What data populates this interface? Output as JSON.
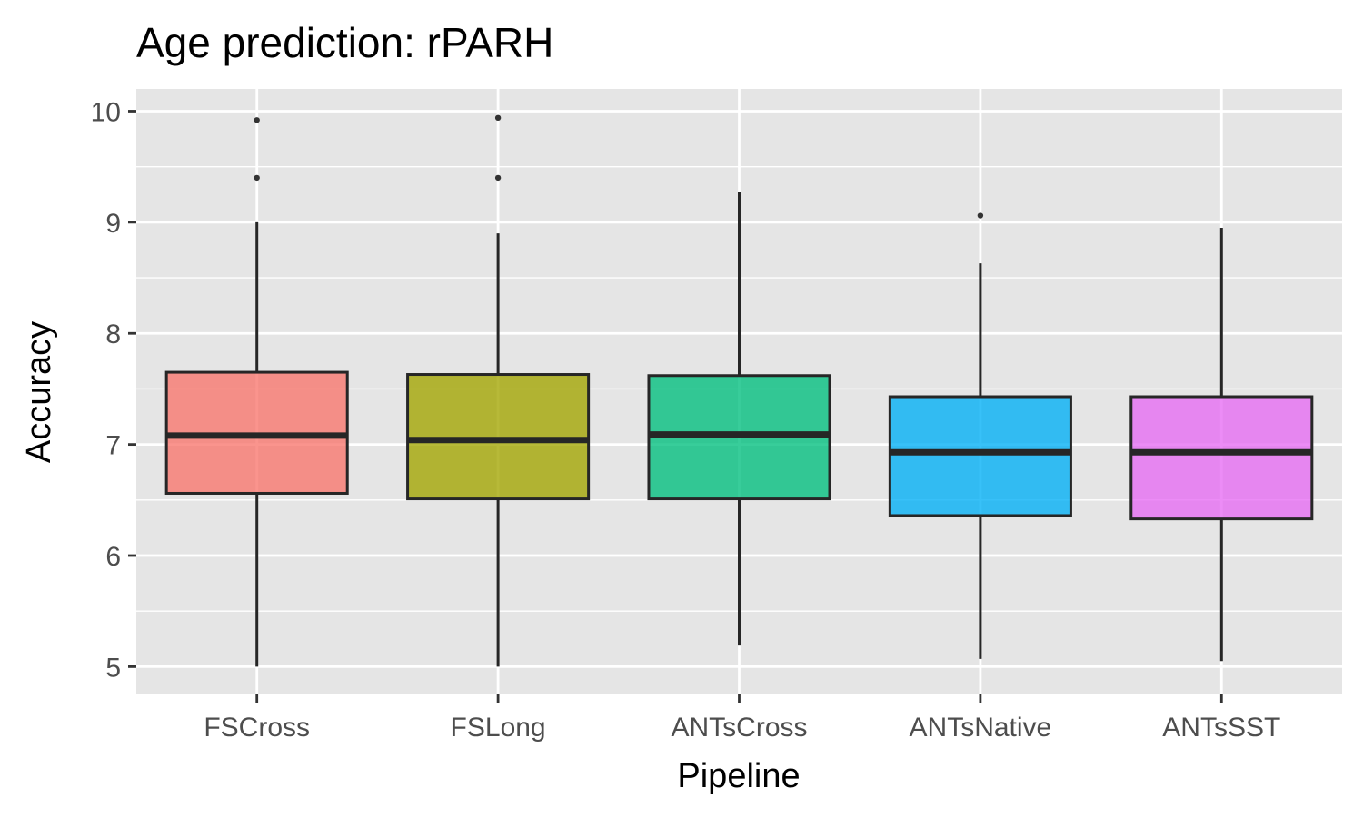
{
  "chart_data": {
    "type": "box",
    "title": "Age prediction: rPARH",
    "xlabel": "Pipeline",
    "ylabel": "Accuracy",
    "ylim": [
      4.75,
      10.2
    ],
    "yticks": [
      5,
      6,
      7,
      8,
      9,
      10
    ],
    "ytick_labels": [
      "5",
      "6",
      "7",
      "8",
      "9",
      "10"
    ],
    "grid": true,
    "legend": "none",
    "categories": [
      "FSCross",
      "FSLong",
      "ANTsCross",
      "ANTsNative",
      "ANTsSST"
    ],
    "series": [
      {
        "category": "FSCross",
        "whisker_low": 5.0,
        "q1": 6.56,
        "median": 7.08,
        "q3": 7.65,
        "whisker_high": 9.0,
        "outliers": [
          9.4,
          9.92
        ],
        "color": "#F8766D"
      },
      {
        "category": "FSLong",
        "whisker_low": 5.0,
        "q1": 6.51,
        "median": 7.04,
        "q3": 7.63,
        "whisker_high": 8.9,
        "outliers": [
          9.4,
          9.94
        ],
        "color": "#A3A500"
      },
      {
        "category": "ANTsCross",
        "whisker_low": 5.19,
        "q1": 6.51,
        "median": 7.09,
        "q3": 7.62,
        "whisker_high": 9.27,
        "outliers": [],
        "color": "#00BF7D"
      },
      {
        "category": "ANTsNative",
        "whisker_low": 5.07,
        "q1": 6.36,
        "median": 6.93,
        "q3": 7.43,
        "whisker_high": 8.63,
        "outliers": [
          9.06
        ],
        "color": "#00B0F6"
      },
      {
        "category": "ANTsSST",
        "whisker_low": 5.05,
        "q1": 6.33,
        "median": 6.93,
        "q3": 7.43,
        "whisker_high": 8.95,
        "outliers": [],
        "color": "#E76BF3"
      }
    ],
    "panel_background": "#E5E5E5",
    "grid_color": "#FFFFFF",
    "box_line_color": "#262626"
  }
}
